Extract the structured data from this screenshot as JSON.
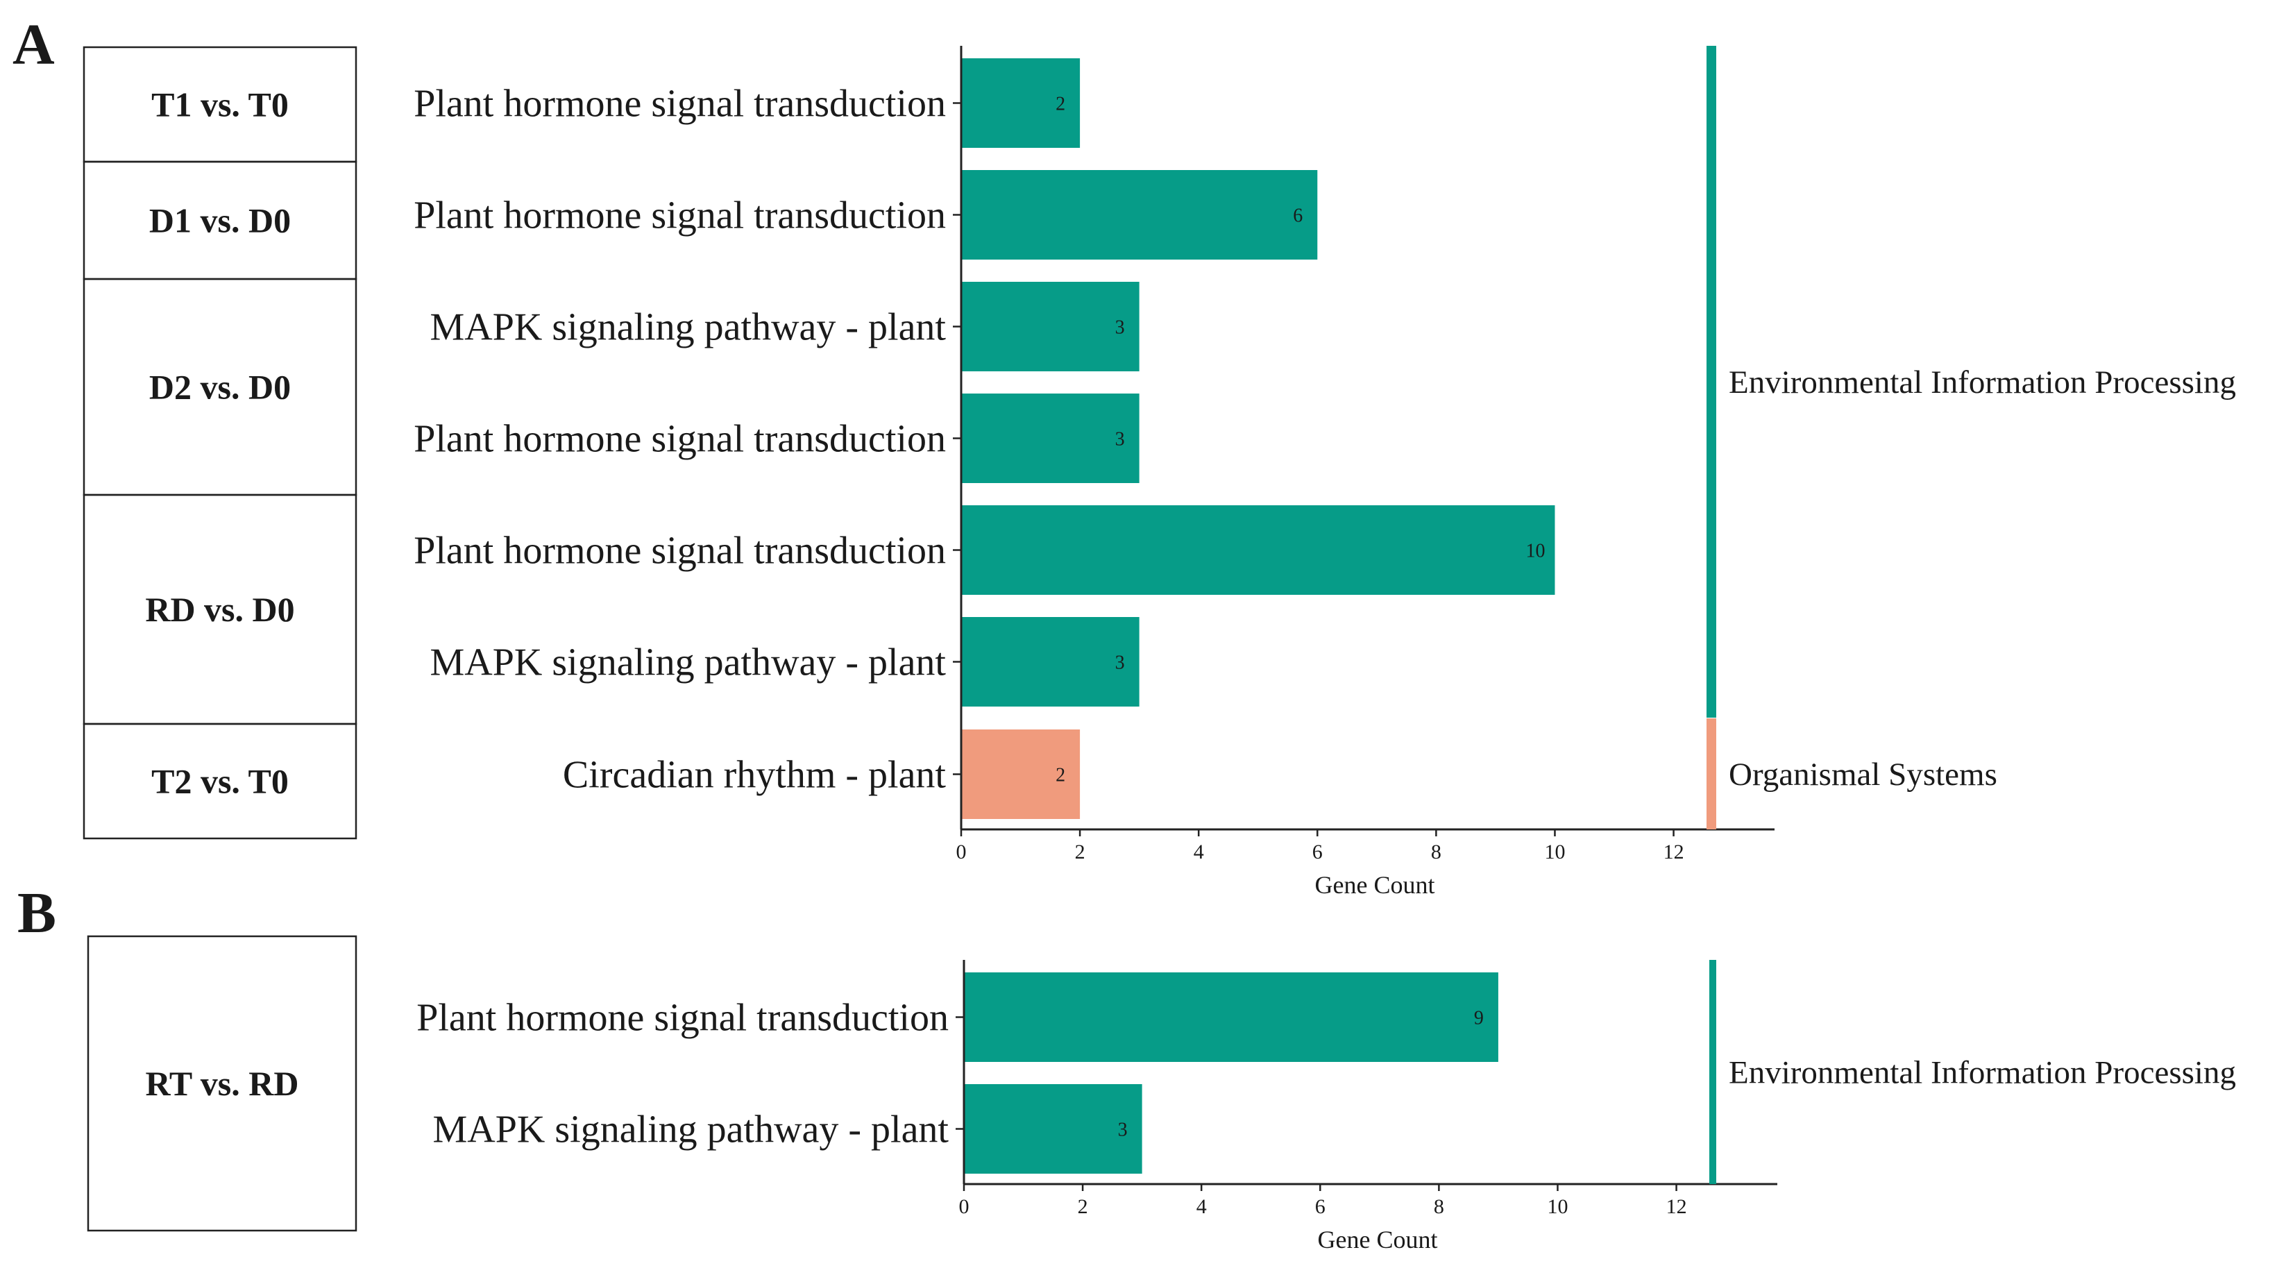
{
  "chart_data": [
    {
      "type": "bar",
      "orientation": "horizontal",
      "panel": "A",
      "groups": [
        {
          "label": "T1 vs. T0",
          "rows": [
            0
          ]
        },
        {
          "label": "D1 vs. D0",
          "rows": [
            1
          ]
        },
        {
          "label": "D2 vs. D0",
          "rows": [
            2,
            3
          ]
        },
        {
          "label": "RD vs. D0",
          "rows": [
            4,
            5
          ]
        },
        {
          "label": "T2 vs. T0",
          "rows": [
            6
          ]
        }
      ],
      "categories": [
        "Plant hormone signal transduction",
        "Plant hormone signal transduction",
        "MAPK signaling pathway - plant",
        "Plant hormone signal transduction",
        "Plant hormone signal transduction",
        "MAPK signaling pathway - plant",
        "Circadian rhythm - plant"
      ],
      "values": [
        2,
        6,
        3,
        3,
        10,
        3,
        2
      ],
      "classes": [
        "Environmental Information Processing",
        "Environmental Information Processing",
        "Environmental Information Processing",
        "Environmental Information Processing",
        "Environmental Information Processing",
        "Environmental Information Processing",
        "Organismal Systems"
      ],
      "class_names": [
        "Environmental Information Processing",
        "Organismal Systems"
      ],
      "class_colors": {
        "Environmental Information Processing": "#069c88",
        "Organismal Systems": "#f09b7d"
      },
      "xlabel": "Gene Count",
      "xlim": [
        0,
        13.7
      ],
      "xticks": [
        0,
        2,
        4,
        6,
        8,
        10,
        12
      ],
      "grid": false
    },
    {
      "type": "bar",
      "orientation": "horizontal",
      "panel": "B",
      "groups": [
        {
          "label": "RT vs. RD",
          "rows": [
            0,
            1
          ]
        }
      ],
      "categories": [
        "Plant hormone signal transduction",
        "MAPK signaling pathway - plant"
      ],
      "values": [
        9,
        3
      ],
      "classes": [
        "Environmental Information Processing",
        "Environmental Information Processing"
      ],
      "class_names": [
        "Environmental Information Processing"
      ],
      "class_colors": {
        "Environmental Information Processing": "#069c88"
      },
      "xlabel": "Gene Count",
      "xlim": [
        0,
        13.7
      ],
      "xticks": [
        0,
        2,
        4,
        6,
        8,
        10,
        12
      ],
      "grid": false
    }
  ]
}
